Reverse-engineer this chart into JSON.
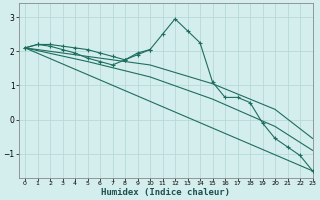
{
  "xlabel": "Humidex (Indice chaleur)",
  "background_color": "#d4eeee",
  "grid_color": "#c0dede",
  "line_color": "#1e6e5e",
  "xlim": [
    -0.5,
    23
  ],
  "ylim": [
    -1.7,
    3.4
  ],
  "yticks": [
    -1,
    0,
    1,
    2,
    3
  ],
  "xticks": [
    0,
    1,
    2,
    3,
    4,
    5,
    6,
    7,
    8,
    9,
    10,
    11,
    12,
    13,
    14,
    15,
    16,
    17,
    18,
    19,
    20,
    21,
    22,
    23
  ],
  "series": [
    {
      "x": [
        0,
        1,
        2,
        3,
        4,
        5,
        6,
        7,
        8,
        9,
        10,
        11,
        12,
        13,
        14,
        15,
        16,
        17,
        18,
        19,
        20,
        21,
        22,
        23
      ],
      "y": [
        2.1,
        2.2,
        2.2,
        2.15,
        2.1,
        2.05,
        1.95,
        1.85,
        1.75,
        1.9,
        2.05,
        2.5,
        2.95,
        2.6,
        2.25,
        1.1,
        0.65,
        0.65,
        0.5,
        -0.1,
        -0.55,
        -0.8,
        -1.05,
        -1.5
      ],
      "marker": true
    },
    {
      "x": [
        0,
        1,
        2,
        3,
        4,
        5,
        6,
        7,
        8,
        9,
        10
      ],
      "y": [
        2.1,
        2.2,
        2.15,
        2.05,
        1.95,
        1.8,
        1.7,
        1.6,
        1.75,
        1.95,
        2.05
      ],
      "marker": true
    },
    {
      "x": [
        0,
        5,
        10,
        15,
        20,
        23
      ],
      "y": [
        2.1,
        1.85,
        1.6,
        1.05,
        0.3,
        -0.55
      ],
      "marker": false
    },
    {
      "x": [
        0,
        5,
        10,
        15,
        20,
        23
      ],
      "y": [
        2.1,
        1.7,
        1.25,
        0.6,
        -0.2,
        -0.9
      ],
      "marker": false
    },
    {
      "x": [
        0,
        23
      ],
      "y": [
        2.1,
        -1.5
      ],
      "marker": false
    }
  ]
}
